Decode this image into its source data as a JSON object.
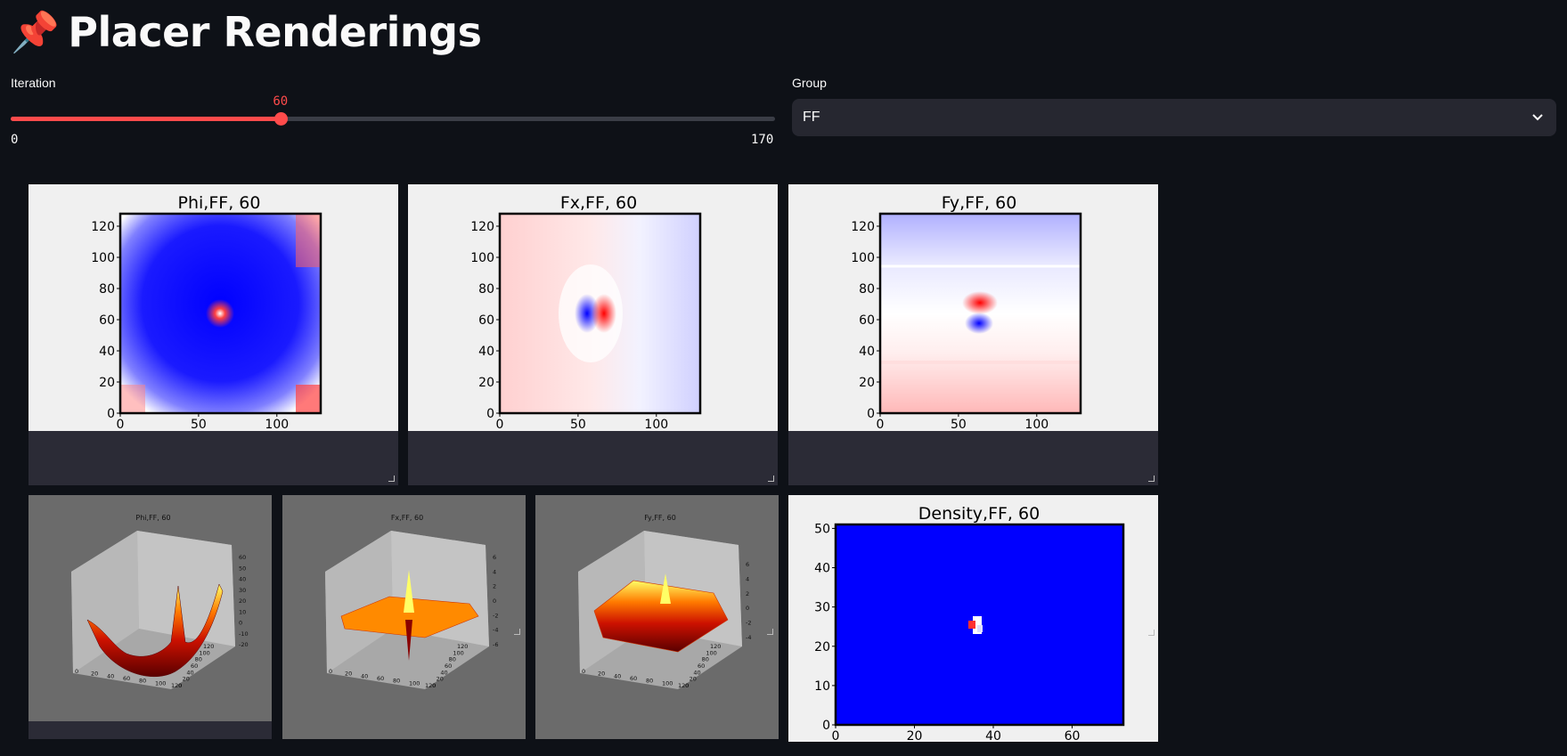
{
  "page": {
    "title": "Placer Renderings",
    "title_icon": "pushpin-icon"
  },
  "controls": {
    "iteration": {
      "label": "Iteration",
      "min": 0,
      "max": 170,
      "value": 60,
      "min_label": "0",
      "max_label": "170",
      "value_label": "60"
    },
    "group": {
      "label": "Group",
      "selected": "FF"
    }
  },
  "colors": {
    "accent": "#ff4b4b",
    "background": "#0e1117",
    "widget_bg": "#262730"
  },
  "chart_data": [
    {
      "type": "heatmap",
      "title": "Phi,FF, 60",
      "xticks": [
        "0",
        "50",
        "100"
      ],
      "yticks": [
        "0",
        "20",
        "40",
        "60",
        "80",
        "100",
        "120"
      ],
      "xlim": [
        0,
        128
      ],
      "ylim": [
        0,
        128
      ],
      "colormap": "bwr"
    },
    {
      "type": "heatmap",
      "title": "Fx,FF, 60",
      "xticks": [
        "0",
        "50",
        "100"
      ],
      "yticks": [
        "0",
        "20",
        "40",
        "60",
        "80",
        "100",
        "120"
      ],
      "xlim": [
        0,
        128
      ],
      "ylim": [
        0,
        128
      ],
      "colormap": "bwr"
    },
    {
      "type": "heatmap",
      "title": "Fy,FF, 60",
      "xticks": [
        "0",
        "50",
        "100"
      ],
      "yticks": [
        "0",
        "20",
        "40",
        "60",
        "80",
        "100",
        "120"
      ],
      "xlim": [
        0,
        128
      ],
      "ylim": [
        0,
        128
      ],
      "colormap": "bwr"
    },
    {
      "type": "surface3d",
      "title": "Phi,FF, 60",
      "zticks": [
        "60",
        "50",
        "40",
        "30",
        "20",
        "10",
        "0",
        "-10",
        "-20"
      ],
      "xticks": [
        "0",
        "20",
        "40",
        "60",
        "80",
        "100",
        "120"
      ],
      "yticks": [
        "120",
        "100",
        "80",
        "60",
        "40",
        "20",
        "0"
      ],
      "colormap": "hot"
    },
    {
      "type": "surface3d",
      "title": "Fx,FF, 60",
      "zticks": [
        "6",
        "4",
        "2",
        "0",
        "-2",
        "-4",
        "-6"
      ],
      "xticks": [
        "0",
        "20",
        "40",
        "60",
        "80",
        "100",
        "120"
      ],
      "yticks": [
        "120",
        "100",
        "80",
        "60",
        "40",
        "20",
        "0"
      ],
      "colormap": "hot"
    },
    {
      "type": "surface3d",
      "title": "Fy,FF, 60",
      "zticks": [
        "6",
        "4",
        "2",
        "0",
        "-2",
        "-4"
      ],
      "xticks": [
        "0",
        "20",
        "40",
        "60",
        "80",
        "100",
        "120"
      ],
      "yticks": [
        "120",
        "100",
        "80",
        "60",
        "40",
        "20",
        "0"
      ],
      "colormap": "hot"
    },
    {
      "type": "heatmap",
      "title": "Density,FF, 60",
      "xticks": [
        "0",
        "20",
        "40",
        "60"
      ],
      "yticks": [
        "0",
        "10",
        "20",
        "30",
        "40",
        "50"
      ],
      "xlim": [
        0,
        73
      ],
      "ylim": [
        0,
        51
      ],
      "colormap": "bwr"
    }
  ]
}
